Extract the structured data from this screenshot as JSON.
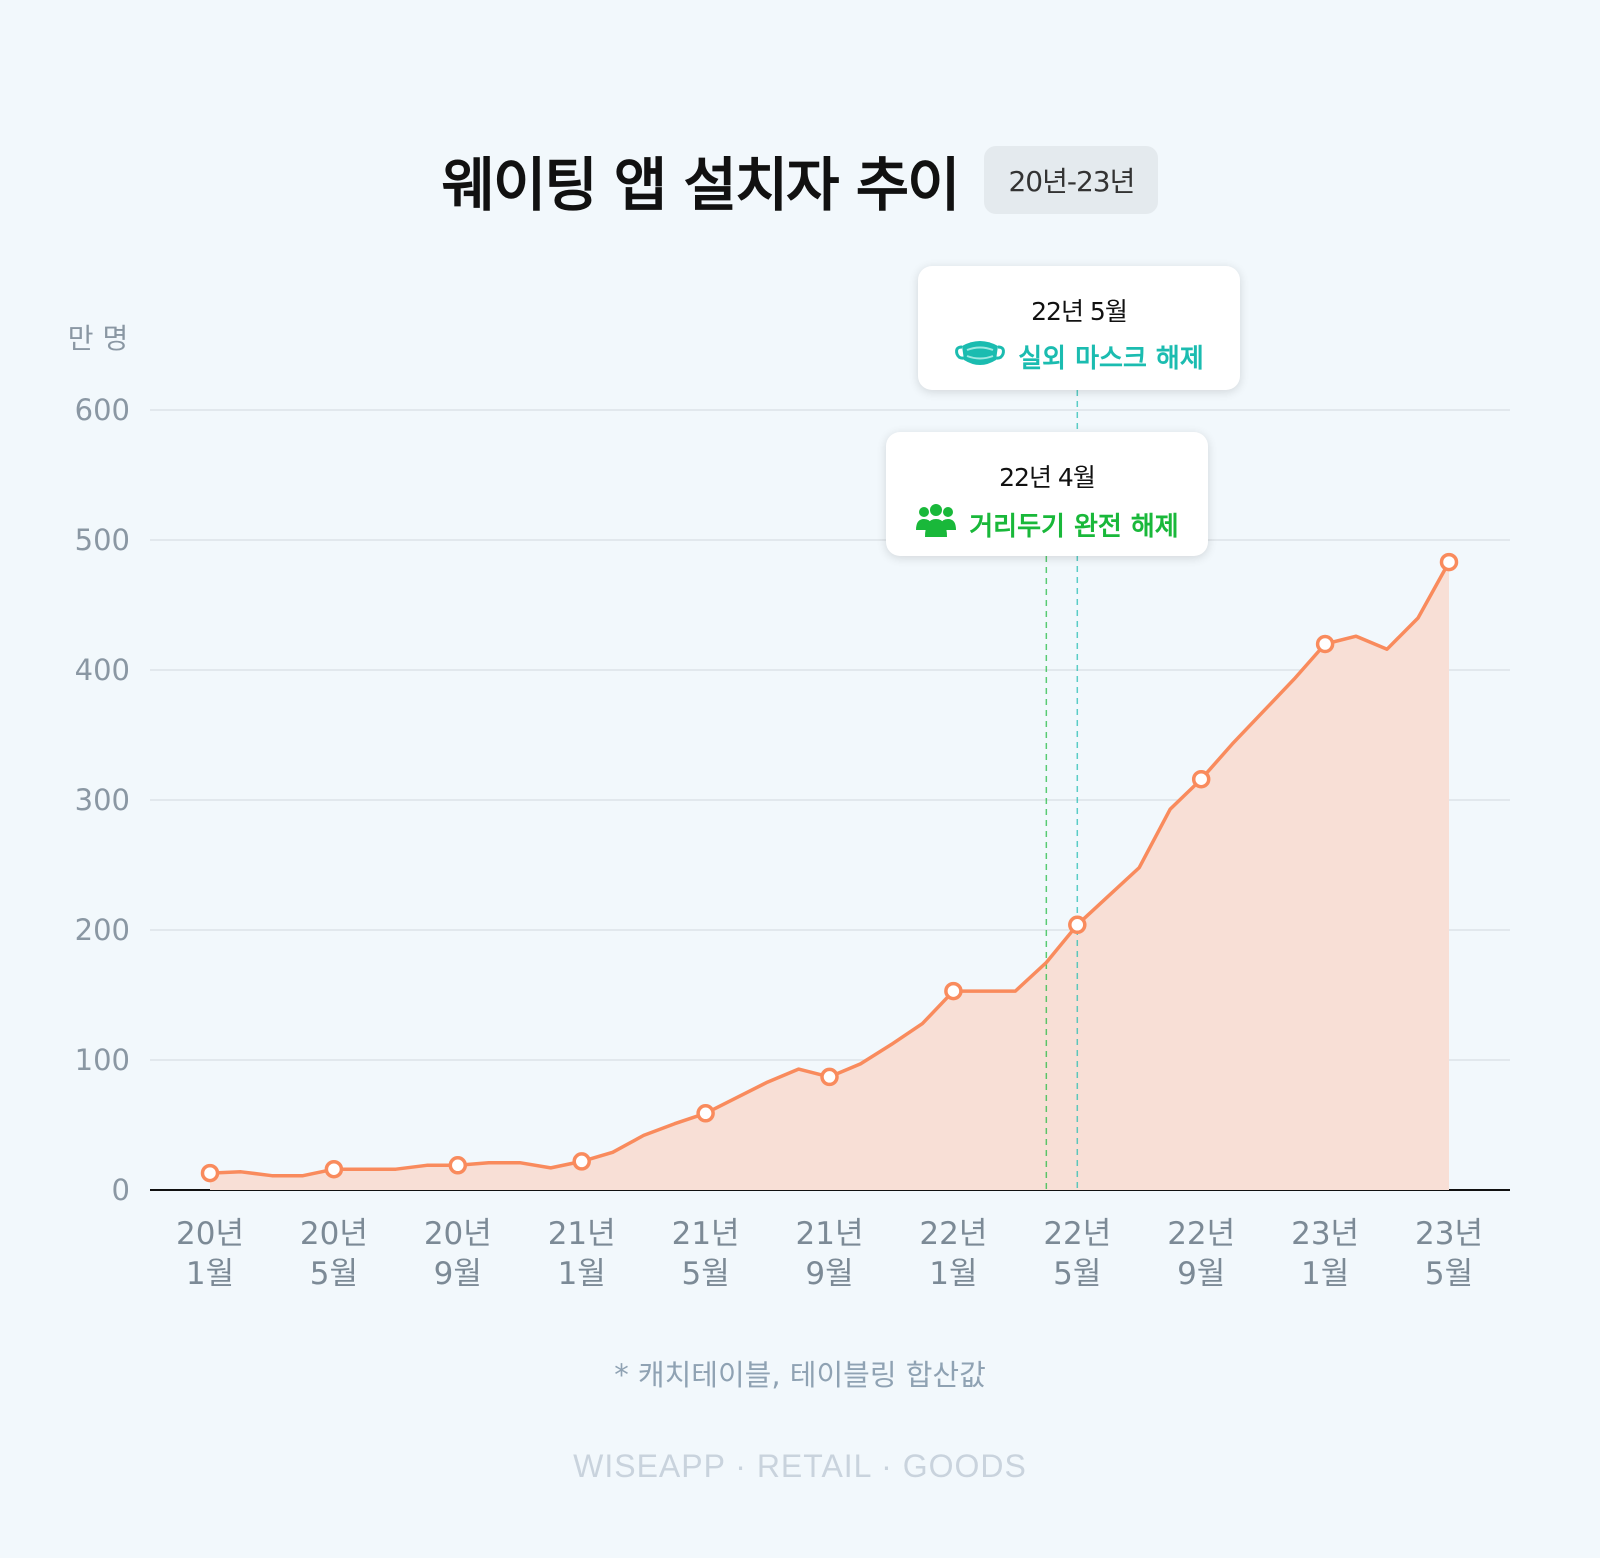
{
  "title": "웨이팅 앱 설치자 추이",
  "period_badge": "20년-23년",
  "footnote": "* 캐치테이블, 테이블링 합산값",
  "brand": "WISEAPP · RETAIL · GOODS",
  "colors": {
    "line": "#f98b5d",
    "area": "#f8dfd6",
    "grid": "#dde3e8",
    "axis": "#111111",
    "event_mask": "#1bbcb0",
    "event_distance": "#19b83a"
  },
  "events": [
    {
      "date": "22년 5월",
      "label": "실외 마스크 해제",
      "icon": "mask-icon",
      "color": "#1bbcb0",
      "index": 28
    },
    {
      "date": "22년 4월",
      "label": "거리두기 완전 해제",
      "icon": "people-icon",
      "color": "#19b83a",
      "index": 27
    }
  ],
  "chart_data": {
    "type": "area",
    "unit_label": "만 명",
    "ylim": [
      0,
      600
    ],
    "y_ticks": [
      0,
      100,
      200,
      300,
      400,
      500,
      600
    ],
    "x_tick_labels": [
      {
        "year": "20년",
        "month": "1월"
      },
      {
        "year": "20년",
        "month": "5월"
      },
      {
        "year": "20년",
        "month": "9월"
      },
      {
        "year": "21년",
        "month": "1월"
      },
      {
        "year": "21년",
        "month": "5월"
      },
      {
        "year": "21년",
        "month": "9월"
      },
      {
        "year": "22년",
        "month": "1월"
      },
      {
        "year": "22년",
        "month": "5월"
      },
      {
        "year": "22년",
        "month": "9월"
      },
      {
        "year": "23년",
        "month": "1월"
      },
      {
        "year": "23년",
        "month": "5월"
      }
    ],
    "marker_every": 4,
    "grid": true,
    "values": [
      13,
      14,
      11,
      11,
      16,
      16,
      16,
      19,
      19,
      21,
      21,
      17,
      22,
      29,
      42,
      51,
      59,
      71,
      83,
      93,
      87,
      97,
      112,
      128,
      153,
      153,
      153,
      175,
      204,
      226,
      248,
      293,
      316,
      343,
      368,
      393,
      420,
      426,
      416,
      440,
      483
    ]
  }
}
